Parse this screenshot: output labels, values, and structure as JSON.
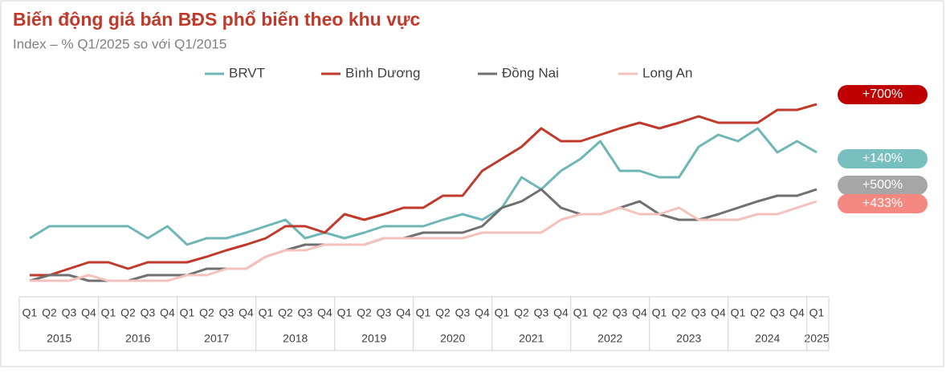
{
  "chart_data": {
    "type": "line",
    "title": "Biến động giá bán BĐS phổ biến theo khu vực",
    "subtitle": "Index – % Q1/2025 so với Q1/2015",
    "categories": [
      "Q1",
      "Q2",
      "Q3",
      "Q4",
      "Q1",
      "Q2",
      "Q3",
      "Q4",
      "Q1",
      "Q2",
      "Q3",
      "Q4",
      "Q1",
      "Q2",
      "Q3",
      "Q4",
      "Q1",
      "Q2",
      "Q3",
      "Q4",
      "Q1",
      "Q2",
      "Q3",
      "Q4",
      "Q1",
      "Q2",
      "Q3",
      "Q4",
      "Q1",
      "Q2",
      "Q3",
      "Q4",
      "Q1",
      "Q2",
      "Q3",
      "Q4",
      "Q1",
      "Q2",
      "Q3",
      "Q4",
      "Q1"
    ],
    "years": [
      "2015",
      "2016",
      "2017",
      "2018",
      "2019",
      "2020",
      "2021",
      "2022",
      "2023",
      "2024",
      "2025"
    ],
    "ylim": [
      0,
      240
    ],
    "series": [
      {
        "name": "BRVT",
        "color": "#6fb7b7",
        "end_label": "+140%",
        "label_color": "#78bfc0",
        "values": [
          63,
          78,
          78,
          78,
          78,
          78,
          63,
          78,
          55,
          63,
          63,
          70,
          78,
          86,
          63,
          70,
          63,
          70,
          78,
          78,
          78,
          86,
          93,
          86,
          101,
          139,
          124,
          147,
          162,
          184,
          147,
          147,
          139,
          139,
          177,
          192,
          184,
          200,
          170,
          184,
          170
        ]
      },
      {
        "name": "Bình Dương",
        "color": "#c0392b",
        "end_label": "+700%",
        "label_color": "#c00000",
        "values": [
          17,
          17,
          25,
          33,
          33,
          25,
          33,
          33,
          33,
          40,
          48,
          55,
          63,
          78,
          78,
          70,
          93,
          86,
          93,
          101,
          101,
          116,
          116,
          147,
          162,
          177,
          200,
          184,
          184,
          192,
          200,
          207,
          200,
          207,
          215,
          207,
          207,
          207,
          223,
          223,
          230
        ]
      },
      {
        "name": "Đồng Nai",
        "color": "#707070",
        "end_label": "+500%",
        "label_color": "#a6a6a6",
        "values": [
          10,
          17,
          17,
          10,
          10,
          10,
          17,
          17,
          17,
          25,
          25,
          25,
          40,
          48,
          55,
          55,
          55,
          55,
          63,
          63,
          70,
          70,
          70,
          78,
          101,
          109,
          124,
          101,
          93,
          93,
          101,
          109,
          93,
          86,
          86,
          93,
          101,
          109,
          116,
          116,
          124
        ]
      },
      {
        "name": "Long An",
        "color": "#f4c2bd",
        "end_label": "+433%",
        "label_color": "#f4877f",
        "values": [
          10,
          10,
          10,
          17,
          10,
          10,
          10,
          10,
          17,
          17,
          25,
          25,
          40,
          48,
          48,
          55,
          55,
          55,
          63,
          63,
          63,
          63,
          63,
          70,
          70,
          70,
          70,
          86,
          93,
          93,
          101,
          93,
          93,
          101,
          86,
          86,
          86,
          93,
          93,
          101,
          109
        ]
      }
    ]
  }
}
